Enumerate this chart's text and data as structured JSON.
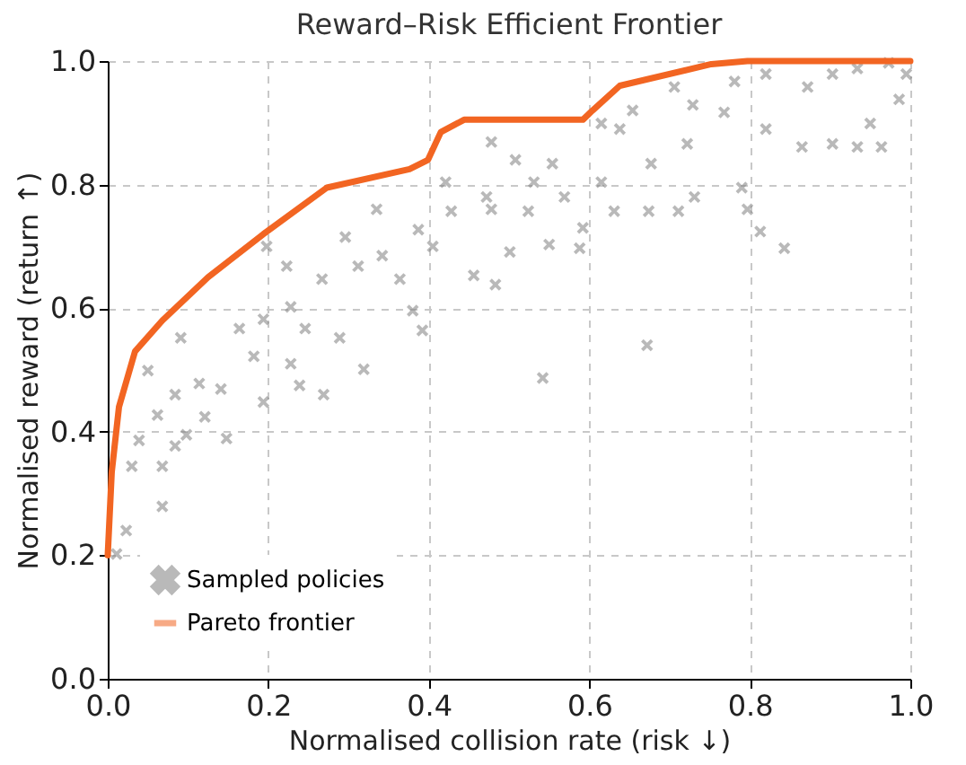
{
  "chart_data": {
    "type": "scatter",
    "title": "Reward–Risk Efficient Frontier",
    "xlabel": "Normalised collision rate (risk ↓)",
    "ylabel": "Normalised reward (return ↑)",
    "xlim": [
      0,
      1
    ],
    "ylim": [
      0,
      1
    ],
    "xticks": [
      {
        "value": 0,
        "label": "0.0"
      },
      0.2,
      0.4,
      0.6,
      0.8,
      {
        "value": 1,
        "label": "1.0"
      }
    ],
    "yticks": [
      {
        "value": 0,
        "label": "0.0"
      },
      0.2,
      0.4,
      0.6,
      0.8,
      {
        "value": 1,
        "label": "1.0"
      }
    ],
    "grid": true,
    "legend": "bottom left",
    "series": [
      {
        "name": "Sampled policies",
        "type": "scatter",
        "marker": "cross",
        "color": "#808080",
        "x": [
          0.011,
          0.023,
          0.068,
          0.03,
          0.068,
          0.039,
          0.084,
          0.098,
          0.148,
          0.062,
          0.084,
          0.114,
          0.121,
          0.141,
          0.194,
          0.182,
          0.164,
          0.228,
          0.239,
          0.269,
          0.319,
          0.289,
          0.246,
          0.228,
          0.267,
          0.223,
          0.312,
          0.335,
          0.296,
          0.342,
          0.364,
          0.392,
          0.38,
          0.387,
          0.405,
          0.421,
          0.428,
          0.478,
          0.456,
          0.483,
          0.091,
          0.05,
          0.194,
          0.198,
          0.542,
          0.672,
          0.843,
          0.813,
          0.797,
          0.964,
          0.934,
          0.588,
          0.55,
          0.631,
          0.674,
          0.711,
          0.731,
          0.79,
          0.615,
          0.569,
          0.524,
          0.531,
          0.554,
          0.638,
          0.677,
          0.722,
          0.768,
          0.82,
          0.865,
          0.903,
          0.95,
          0.986,
          0.995,
          0.934,
          0.872,
          0.82,
          0.781,
          0.729,
          0.706,
          0.654,
          0.615,
          0.478,
          0.508,
          0.472,
          0.501,
          0.592,
          0.973,
          0.903
        ],
        "values": [
          0.202,
          0.24,
          0.279,
          0.344,
          0.344,
          0.386,
          0.377,
          0.395,
          0.389,
          0.427,
          0.46,
          0.478,
          0.424,
          0.469,
          0.448,
          0.522,
          0.567,
          0.51,
          0.475,
          0.46,
          0.501,
          0.552,
          0.567,
          0.602,
          0.647,
          0.668,
          0.668,
          0.76,
          0.715,
          0.685,
          0.647,
          0.564,
          0.596,
          0.727,
          0.7,
          0.804,
          0.757,
          0.76,
          0.653,
          0.638,
          0.552,
          0.499,
          0.582,
          0.7,
          0.487,
          0.54,
          0.697,
          0.724,
          0.76,
          0.861,
          0.861,
          0.697,
          0.703,
          0.757,
          0.757,
          0.757,
          0.78,
          0.795,
          0.804,
          0.78,
          0.757,
          0.804,
          0.834,
          0.89,
          0.834,
          0.866,
          0.917,
          0.89,
          0.861,
          0.866,
          0.899,
          0.938,
          0.979,
          0.988,
          0.958,
          0.979,
          0.967,
          0.929,
          0.958,
          0.92,
          0.899,
          0.869,
          0.84,
          0.78,
          0.691,
          0.73,
          0.997,
          0.979
        ]
      },
      {
        "name": "Pareto frontier",
        "type": "line",
        "line_style": "solid",
        "color": "#f26522",
        "x": [
          0,
          0.005,
          0.014,
          0.034,
          0.068,
          0.125,
          0.194,
          0.273,
          0.376,
          0.399,
          0.415,
          0.444,
          0.5,
          0.592,
          0.604,
          0.638,
          0.752,
          0.797,
          1.0
        ],
        "values": [
          0.2,
          0.335,
          0.44,
          0.53,
          0.58,
          0.65,
          0.72,
          0.795,
          0.825,
          0.84,
          0.885,
          0.905,
          0.905,
          0.905,
          0.92,
          0.96,
          0.995,
          1.0,
          1.0
        ]
      }
    ]
  }
}
